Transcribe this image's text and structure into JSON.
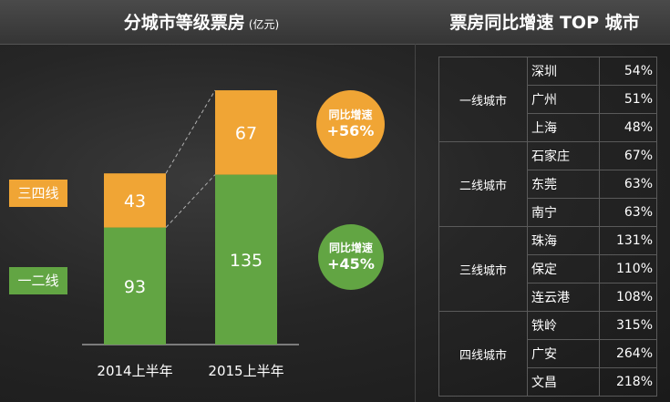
{
  "left_title": "分城市等级票房",
  "left_unit": "(亿元)",
  "right_title": "票房同比增速 TOP 城市",
  "legend": [
    {
      "label": "三四线",
      "color": "#f0a535"
    },
    {
      "label": "一二线",
      "color": "#62a543"
    }
  ],
  "growth": {
    "tier34": {
      "label": "同比增速",
      "value": "+56%"
    },
    "tier12": {
      "label": "同比增速",
      "value": "+45%"
    }
  },
  "chart_data": {
    "type": "bar",
    "stacked": true,
    "title": "分城市等级票房",
    "unit": "亿元",
    "categories": [
      "2014上半年",
      "2015上半年"
    ],
    "series": [
      {
        "name": "一二线",
        "values": [
          93,
          135
        ],
        "color": "#62a543"
      },
      {
        "name": "三四线",
        "values": [
          43,
          67
        ],
        "color": "#f0a535"
      }
    ],
    "ylim": [
      0,
      210
    ],
    "grid": false
  },
  "table": {
    "groups": [
      {
        "tier": "一线城市",
        "rows": [
          {
            "city": "深圳",
            "pct": "54%"
          },
          {
            "city": "广州",
            "pct": "51%"
          },
          {
            "city": "上海",
            "pct": "48%"
          }
        ]
      },
      {
        "tier": "二线城市",
        "rows": [
          {
            "city": "石家庄",
            "pct": "67%"
          },
          {
            "city": "东莞",
            "pct": "63%"
          },
          {
            "city": "南宁",
            "pct": "63%"
          }
        ]
      },
      {
        "tier": "三线城市",
        "rows": [
          {
            "city": "珠海",
            "pct": "131%"
          },
          {
            "city": "保定",
            "pct": "110%"
          },
          {
            "city": "连云港",
            "pct": "108%"
          }
        ]
      },
      {
        "tier": "四线城市",
        "rows": [
          {
            "city": "铁岭",
            "pct": "315%"
          },
          {
            "city": "广安",
            "pct": "264%"
          },
          {
            "city": "文昌",
            "pct": "218%"
          }
        ]
      }
    ]
  }
}
